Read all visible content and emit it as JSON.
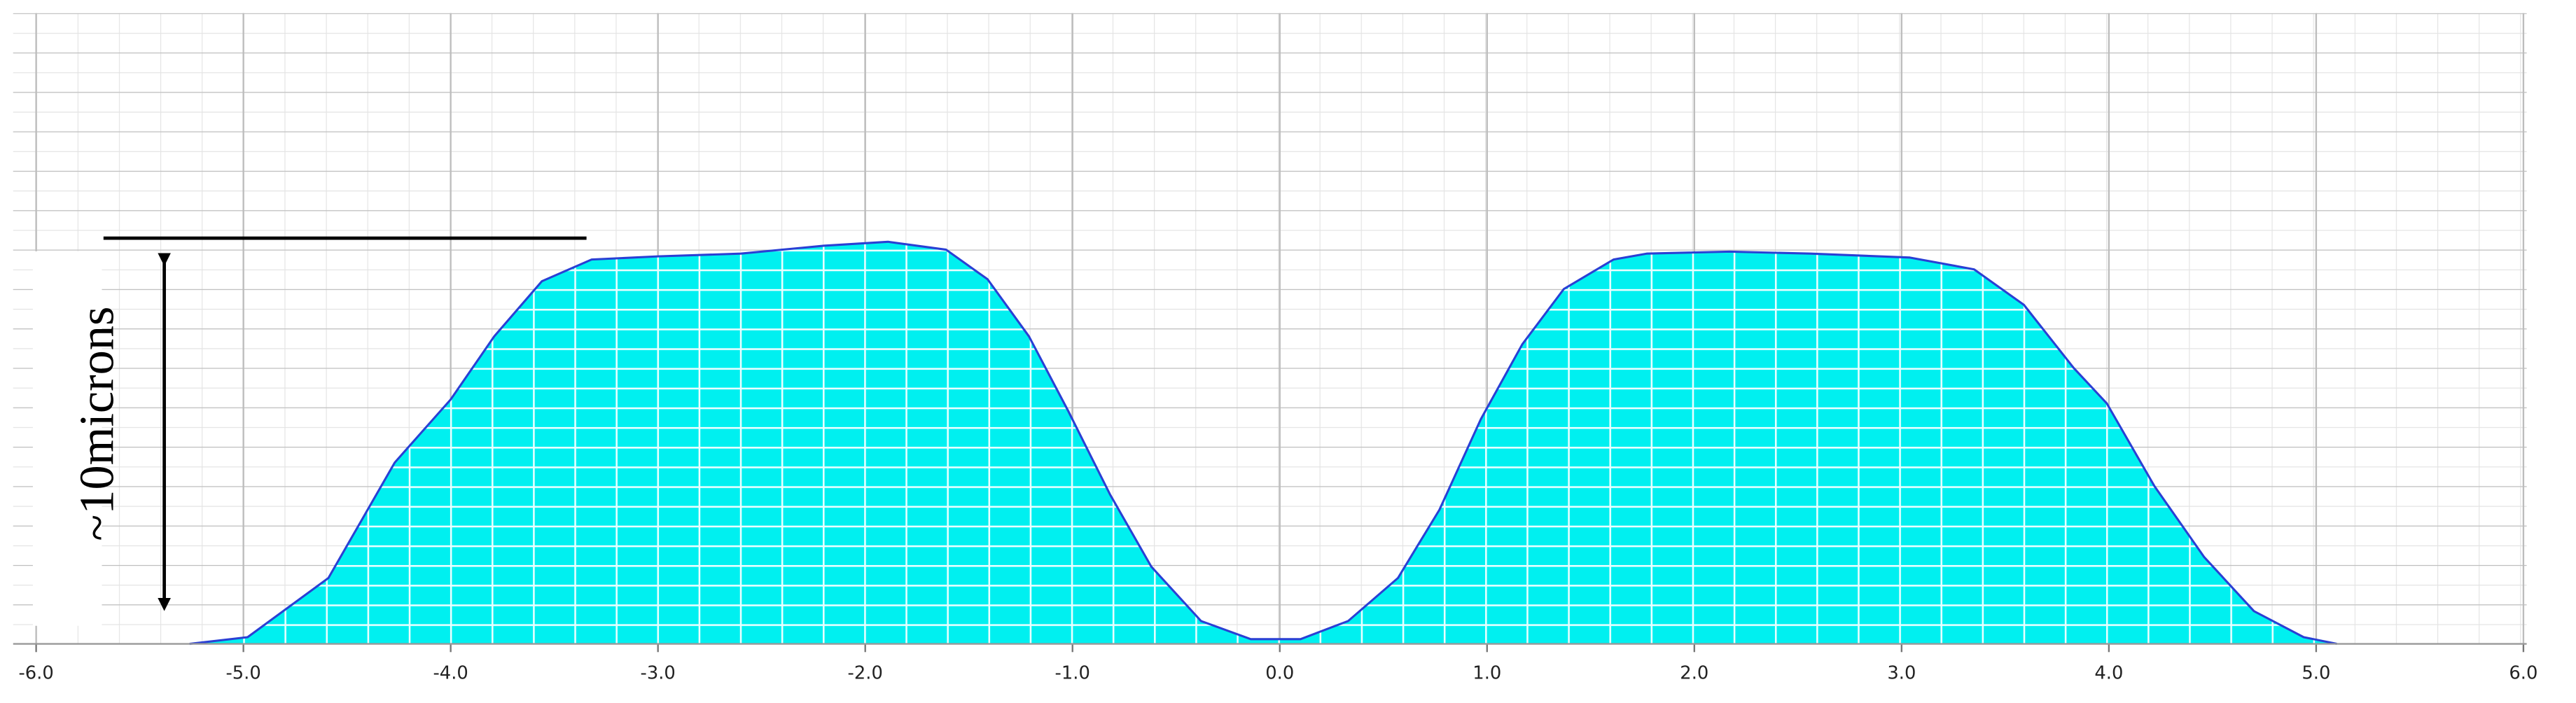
{
  "chart_data": {
    "type": "area",
    "annotation": "~10microns",
    "x": [
      -5.26,
      -4.98,
      -4.59,
      -4.27,
      -4.0,
      -3.79,
      -3.56,
      -3.32,
      -3.0,
      -2.6,
      -2.2,
      -1.89,
      -1.61,
      -1.41,
      -1.21,
      -1.02,
      -0.82,
      -0.62,
      -0.38,
      -0.14,
      0.1,
      0.33,
      0.57,
      0.77,
      0.97,
      1.17,
      1.37,
      1.61,
      1.77,
      2.17,
      2.56,
      3.04,
      3.35,
      3.59,
      3.83,
      3.99,
      4.22,
      4.46,
      4.7,
      4.94,
      5.1
    ],
    "values": [
      0,
      0.17,
      1.67,
      4.6,
      6.2,
      7.8,
      9.2,
      9.75,
      9.83,
      9.9,
      10.1,
      10.2,
      10.0,
      9.25,
      7.8,
      5.9,
      3.8,
      1.96,
      0.58,
      0.12,
      0.12,
      0.58,
      1.67,
      3.4,
      5.7,
      7.6,
      9.0,
      9.75,
      9.9,
      9.95,
      9.9,
      9.8,
      9.5,
      8.6,
      7.0,
      6.1,
      4.0,
      2.2,
      0.83,
      0.17,
      0
    ],
    "color": "#00f0f0",
    "line_color": "#2a3fd4",
    "xlim": [
      -6,
      6
    ],
    "xticks": [
      {
        "value": -6,
        "label": "-6.0"
      },
      {
        "value": -5,
        "label": "-5.0"
      },
      {
        "value": -4,
        "label": "-4.0"
      },
      {
        "value": -3,
        "label": "-3.0"
      },
      {
        "value": -2,
        "label": "-2.0"
      },
      {
        "value": -1,
        "label": "-1.0"
      },
      {
        "value": 0,
        "label": "0.0"
      },
      {
        "value": 1,
        "label": "1.0"
      },
      {
        "value": 2,
        "label": "2.0"
      },
      {
        "value": 3,
        "label": "3.0"
      },
      {
        "value": 4,
        "label": "4.0"
      },
      {
        "value": 5,
        "label": "5.0"
      },
      {
        "value": 6,
        "label": "6.0"
      }
    ],
    "ylim": [
      0,
      16
    ],
    "grid": true
  }
}
